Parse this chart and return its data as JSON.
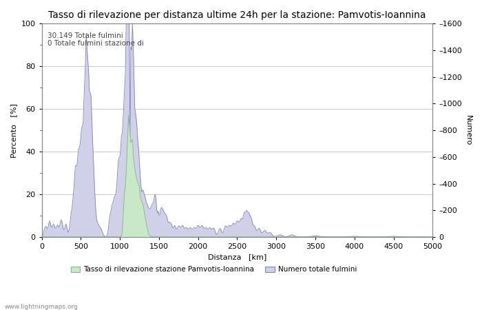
{
  "title": "Tasso di rilevazione per distanza ultime 24h per la stazione: Pamvotis-Ioannina",
  "xlabel": "Distanza   [km]",
  "ylabel_left": "Percento   [%]",
  "ylabel_right": "Numero",
  "annotation": "30.149 Totale fulmini\n0 Totale fulmini stazione di",
  "xlim": [
    0,
    5000
  ],
  "ylim_left": [
    0,
    100
  ],
  "ylim_right": [
    0,
    1600
  ],
  "xticks": [
    0,
    500,
    1000,
    1500,
    2000,
    2500,
    3000,
    3500,
    4000,
    4500,
    5000
  ],
  "yticks_left": [
    0,
    20,
    40,
    60,
    80,
    100
  ],
  "yticks_right": [
    0,
    200,
    400,
    600,
    800,
    1000,
    1200,
    1400,
    1600
  ],
  "background_color": "#ffffff",
  "grid_color": "#c8c8c8",
  "line_color": "#8080c0",
  "fill_color_blue": "#d0d0e8",
  "fill_color_green": "#c8e8c8",
  "watermark": "www.lightningmaps.org",
  "legend_label_green": "Tasso di rilevazione stazione Pamvotis-Ioannina",
  "legend_label_blue": "Numero totale fulmini",
  "title_fontsize": 10,
  "axis_fontsize": 8,
  "tick_fontsize": 8
}
